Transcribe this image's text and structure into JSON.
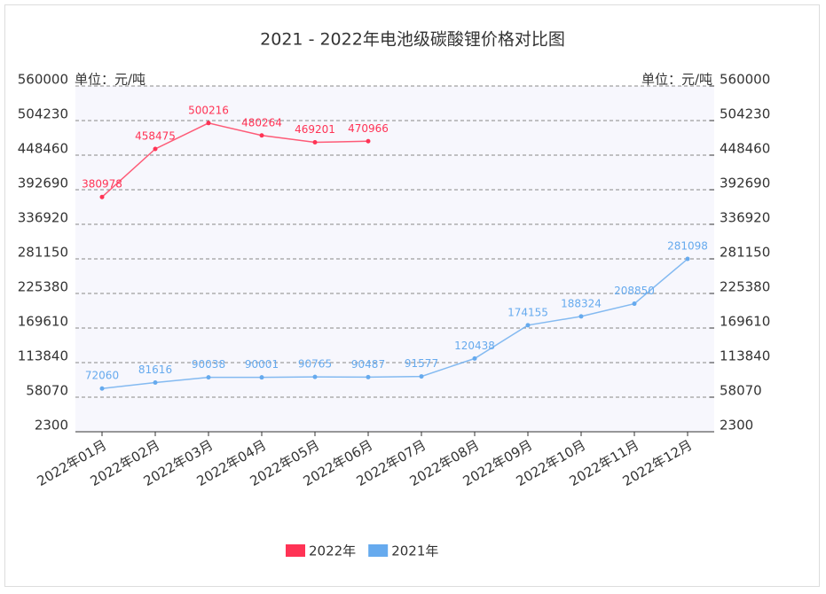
{
  "chart_data": {
    "type": "line",
    "title": "2021 - 2022年电池级碳酸锂价格对比图",
    "y_label": "单位：元/吨",
    "y2_label": "单位：元/吨",
    "categories": [
      "2022年01月",
      "2022年02月",
      "2022年03月",
      "2022年04月",
      "2022年05月",
      "2022年06月",
      "2022年07月",
      "2022年08月",
      "2022年09月",
      "2022年10月",
      "2022年11月",
      "2022年12月"
    ],
    "series": [
      {
        "name": "2022年",
        "color": "#ff3355",
        "values": [
          380978,
          458475,
          500216,
          480264,
          469201,
          470966,
          null,
          null,
          null,
          null,
          null,
          null
        ]
      },
      {
        "name": "2021年",
        "color": "#66aaee",
        "values": [
          72060,
          81616,
          90038,
          90001,
          90765,
          90487,
          91577,
          120438,
          174155,
          188324,
          208850,
          281098
        ]
      }
    ],
    "ylim": [
      2300,
      560000
    ],
    "yticks": [
      2300,
      58070,
      113840,
      169610,
      225380,
      281150,
      336920,
      392690,
      448460,
      504230,
      560000
    ],
    "y2lim": [
      2300,
      560000
    ],
    "y2ticks": [
      2300,
      58070,
      113840,
      169610,
      225380,
      281150,
      336920,
      392690,
      448460,
      504230,
      560000
    ],
    "grid": true,
    "legend": "bottom"
  }
}
